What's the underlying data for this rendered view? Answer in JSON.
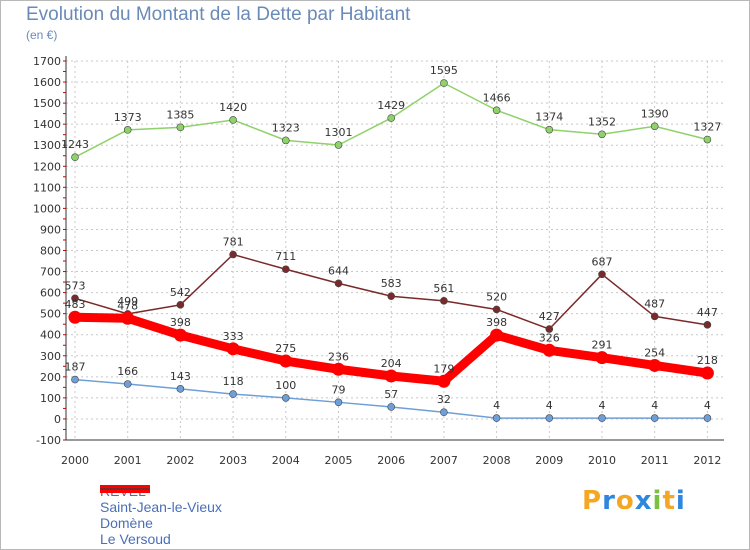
{
  "title": "Evolution du Montant de la Dette par Habitant",
  "subtitle": "(en €)",
  "logo": {
    "letters": [
      "P",
      "r",
      "o",
      "x",
      "i",
      "t",
      "i"
    ],
    "colors": [
      "#f5a623",
      "#2e86de",
      "#f5a623",
      "#2e86de",
      "#7bc043",
      "#f5a623",
      "#2e86de"
    ]
  },
  "chart_data": {
    "type": "line",
    "title": "Evolution du Montant de la Dette par Habitant",
    "subtitle": "(en €)",
    "xlabel": "",
    "ylabel": "",
    "x": [
      "2000",
      "2001",
      "2002",
      "2003",
      "2004",
      "2005",
      "2006",
      "2007",
      "2008",
      "2009",
      "2010",
      "2011",
      "2012"
    ],
    "ylim": [
      -100,
      1700
    ],
    "yticks": [
      "-100",
      "0",
      "100",
      "200",
      "300",
      "400",
      "500",
      "600",
      "700",
      "800",
      "900",
      "1000",
      "1100",
      "1200",
      "1300",
      "1400",
      "1500",
      "1600",
      "1700"
    ],
    "grid": true,
    "legend_position": "bottom-left",
    "series": [
      {
        "name": "REVEL",
        "color": "#ff0000",
        "values": [
          483,
          478,
          398,
          333,
          275,
          236,
          204,
          179,
          398,
          326,
          291,
          254,
          218
        ],
        "labels": [
          "483",
          "478",
          "398",
          "333",
          "275",
          "236",
          "204",
          "179",
          "398",
          "326",
          "291",
          "254",
          "218"
        ]
      },
      {
        "name": "Saint-Jean-le-Vieux",
        "color": "#6f9fd8",
        "values": [
          187,
          166,
          143,
          118,
          100,
          79,
          57,
          32,
          4,
          4,
          4,
          4,
          4
        ],
        "labels": [
          "187",
          "166",
          "143",
          "118",
          "100",
          "79",
          "57",
          "32",
          "4",
          "4",
          "4",
          "4",
          "4"
        ]
      },
      {
        "name": "Domène",
        "color": "#8fd16a",
        "values": [
          1243,
          1373,
          1385,
          1420,
          1323,
          1301,
          1429,
          1595,
          1466,
          1374,
          1352,
          1390,
          1327
        ],
        "labels": [
          "1243",
          "1373",
          "1385",
          "1420",
          "1323",
          "1301",
          "1429",
          "1595",
          "1466",
          "1374",
          "1352",
          "1390",
          "1327"
        ]
      },
      {
        "name": "Le Versoud",
        "color": "#7a2a2a",
        "values": [
          573,
          499,
          542,
          781,
          711,
          644,
          583,
          561,
          520,
          427,
          687,
          487,
          447
        ],
        "labels": [
          "573",
          "499",
          "542",
          "781",
          "711",
          "644",
          "583",
          "561",
          "520",
          "427",
          "687",
          "487",
          "447"
        ]
      }
    ]
  }
}
